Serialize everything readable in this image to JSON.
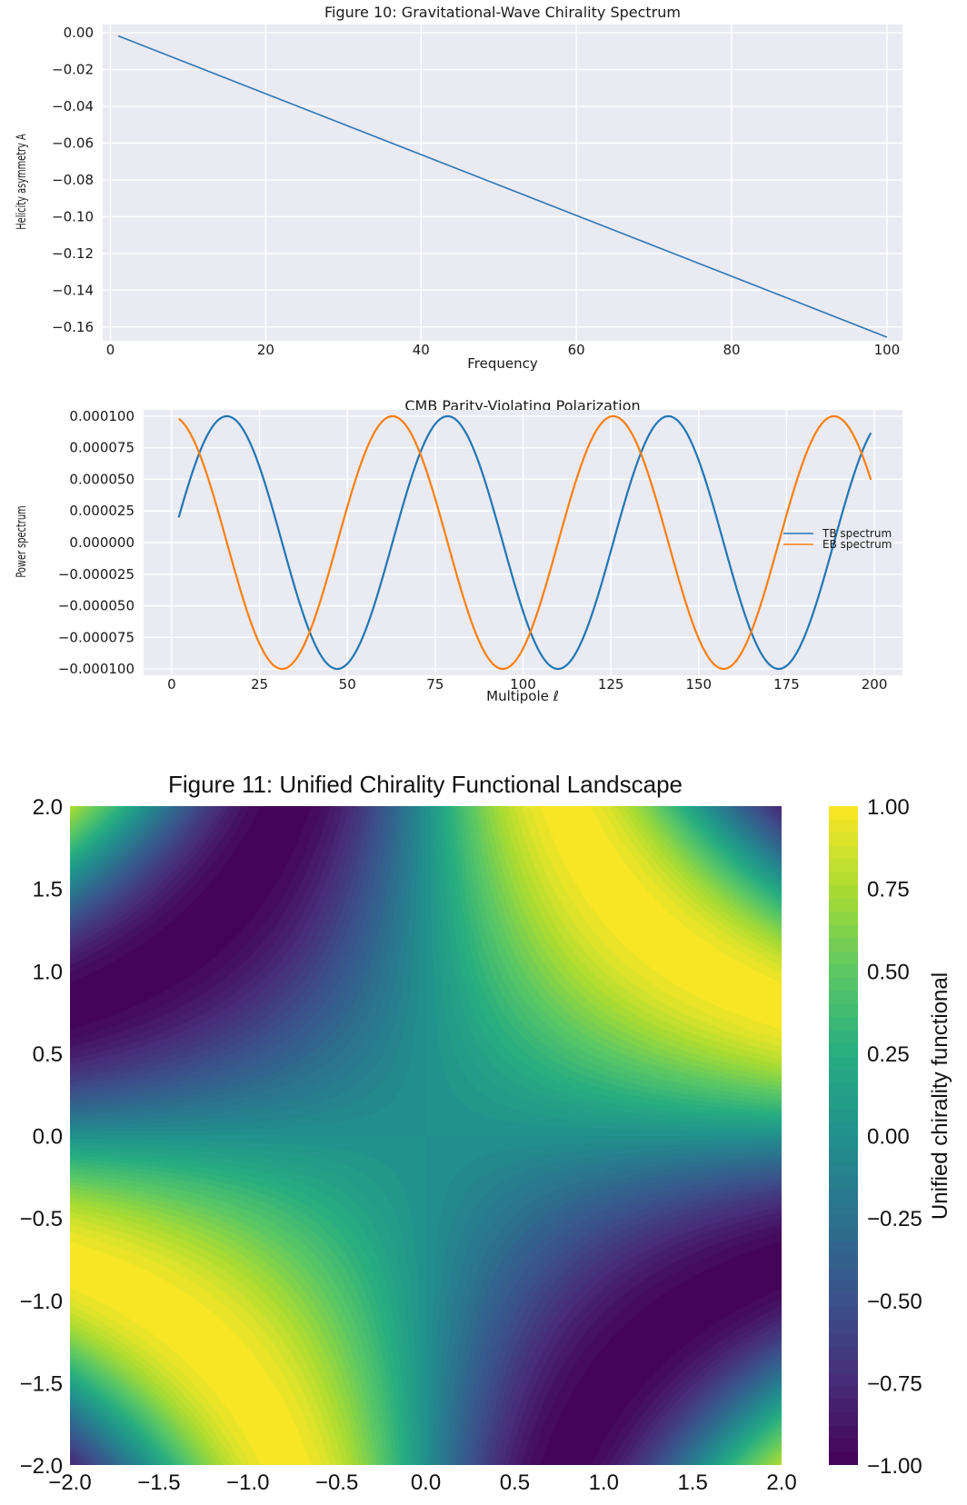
{
  "chart_data": [
    {
      "type": "line",
      "title": "Figure 10: Gravitational-Wave Chirality Spectrum",
      "xlabel": "Frequency",
      "ylabel": "Helicity asymmetry A",
      "xlim": [
        -1,
        102
      ],
      "ylim": [
        -0.1675,
        0.0045
      ],
      "xticks": [
        0,
        20,
        40,
        60,
        80,
        100
      ],
      "yticks": [
        0.0,
        -0.02,
        -0.04,
        -0.06,
        -0.08,
        -0.1,
        -0.12,
        -0.14,
        -0.16
      ],
      "ytick_labels": [
        "0.00",
        "−0.02",
        "−0.04",
        "−0.06",
        "−0.08",
        "−0.10",
        "−0.12",
        "−0.14",
        "−0.16"
      ],
      "grid": true,
      "series": [
        {
          "color": "#2f77b4",
          "x": [
            1,
            100
          ],
          "y": [
            -0.0017,
            -0.1655
          ]
        }
      ]
    },
    {
      "type": "line",
      "title": "CMB Parity-Violating Polarization",
      "xlabel": "Multipole ℓ",
      "ylabel": "Power spectrum",
      "xlim": [
        -8,
        208
      ],
      "ylim": [
        -0.000105,
        0.000105
      ],
      "xticks": [
        0,
        25,
        50,
        75,
        100,
        125,
        150,
        175,
        200
      ],
      "yticks": [
        0.0001,
        7.5e-05,
        5e-05,
        2.5e-05,
        0.0,
        -2.5e-05,
        -5e-05,
        -7.5e-05,
        -0.0001
      ],
      "ytick_labels": [
        "0.000100",
        "0.000075",
        "0.000050",
        "0.000025",
        "0.000000",
        "−0.000025",
        "−0.000050",
        "−0.000075",
        "−0.000100"
      ],
      "grid": true,
      "legend_position": "center-right",
      "series": [
        {
          "name": "TB spectrum",
          "color": "#1f77b4",
          "formula": "1e-4 * sin(l/10)",
          "x_range": [
            2,
            199
          ]
        },
        {
          "name": "EB spectrum",
          "color": "#ff7f0e",
          "formula": "1e-4 * cos(l/10)",
          "x_range": [
            2,
            199
          ]
        }
      ]
    },
    {
      "type": "heatmap",
      "title": "Figure 11: Unified Chirality Functional Landscape",
      "xlabel": "",
      "ylabel": "",
      "colorbar_label": "Unified chirality functional",
      "xlim": [
        -2.0,
        2.0
      ],
      "ylim": [
        -2.0,
        2.0
      ],
      "xticks": [
        -2.0,
        -1.5,
        -1.0,
        -0.5,
        0.0,
        0.5,
        1.0,
        1.5,
        2.0
      ],
      "xtick_labels": [
        "−2.0",
        "−1.5",
        "−1.0",
        "−0.5",
        "0.0",
        "0.5",
        "1.0",
        "1.5",
        "2.0"
      ],
      "yticks": [
        2.0,
        1.5,
        1.0,
        0.5,
        0.0,
        -0.5,
        -1.0,
        -1.5,
        -2.0
      ],
      "ytick_labels": [
        "2.0",
        "1.5",
        "1.0",
        "0.5",
        "0.0",
        "−0.5",
        "−1.0",
        "−1.5",
        "−2.0"
      ],
      "colorbar_ticks": [
        1.0,
        0.75,
        0.5,
        0.25,
        0.0,
        -0.25,
        -0.5,
        -0.75,
        -1.0
      ],
      "colorbar_tick_labels": [
        "1.00",
        "0.75",
        "0.50",
        "0.25",
        "0.00",
        "−0.25",
        "−0.50",
        "−0.75",
        "−1.00"
      ],
      "clim": [
        -1.0,
        1.0
      ],
      "colormap": "viridis",
      "levels": 50,
      "formula": "sin(x*y)"
    }
  ]
}
